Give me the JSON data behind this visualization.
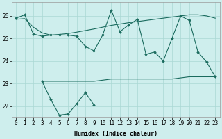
{
  "xlabel": "Humidex (Indice chaleur)",
  "background_color": "#ceeeed",
  "plot_bg_color": "#ceeeed",
  "line_color": "#1a6b5e",
  "grid_color": "#aad8d4",
  "x_values": [
    0,
    1,
    2,
    3,
    4,
    5,
    6,
    7,
    8,
    9,
    10,
    11,
    12,
    13,
    14,
    15,
    16,
    17,
    18,
    19,
    20,
    21,
    22,
    23
  ],
  "series1": [
    25.9,
    26.05,
    25.2,
    25.1,
    25.15,
    25.15,
    25.15,
    25.1,
    24.65,
    24.45,
    25.15,
    26.25,
    25.3,
    25.6,
    25.85,
    24.3,
    24.4,
    24.0,
    25.0,
    26.0,
    25.8,
    24.4,
    23.95,
    23.3
  ],
  "series_trend": [
    25.85,
    25.88,
    25.5,
    25.25,
    25.15,
    25.18,
    25.22,
    25.28,
    25.35,
    25.42,
    25.5,
    25.58,
    25.64,
    25.7,
    25.75,
    25.8,
    25.85,
    25.9,
    25.95,
    26.0,
    26.05,
    26.05,
    26.0,
    25.9
  ],
  "series2_x": [
    3,
    4,
    5,
    6,
    7,
    8,
    9
  ],
  "series2_y": [
    23.1,
    22.3,
    21.6,
    21.65,
    22.1,
    22.6,
    22.05
  ],
  "series3_x": [
    3,
    4,
    5,
    6,
    7,
    8,
    9,
    10,
    11,
    12,
    13,
    14,
    15,
    16,
    17,
    18,
    19,
    20,
    21,
    22,
    23
  ],
  "series3_y": [
    23.1,
    23.1,
    23.1,
    23.1,
    23.1,
    23.1,
    23.1,
    23.15,
    23.2,
    23.2,
    23.2,
    23.2,
    23.2,
    23.2,
    23.2,
    23.2,
    23.25,
    23.3,
    23.3,
    23.3,
    23.3
  ],
  "ylim": [
    21.5,
    26.6
  ],
  "yticks": [
    22,
    23,
    24,
    25,
    26
  ],
  "xticks": [
    0,
    1,
    2,
    3,
    4,
    5,
    6,
    7,
    8,
    9,
    10,
    11,
    12,
    13,
    14,
    15,
    16,
    17,
    18,
    19,
    20,
    21,
    22,
    23
  ],
  "xlabel_fontsize": 6.0,
  "tick_fontsize": 5.5
}
